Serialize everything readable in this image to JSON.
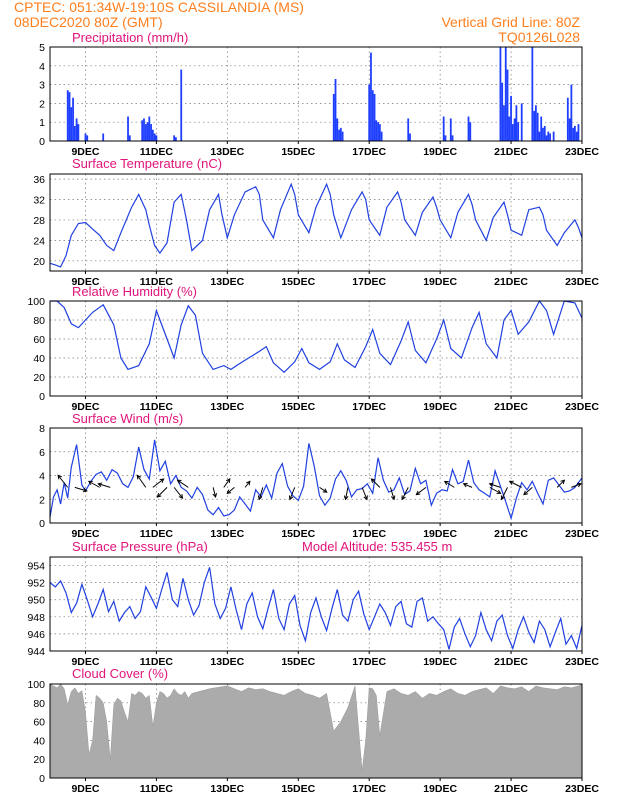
{
  "header": {
    "line1_left": "CPTEC:   051:34W-19:10S   CASSILANDIA (MS)",
    "line2_left": "08DEC2020 80Z (GMT)",
    "line1_right": "Vertical Grid Line: 80Z",
    "line2_right": "TQ0126L028"
  },
  "colors": {
    "header": "#ff7f1e",
    "title": "#e0147a",
    "line": "#2040e0",
    "bars": "#1f3fff",
    "cloud": "#ababab",
    "arrow": "#000000"
  },
  "x_axis": {
    "tick_labels": [
      "9DEC",
      "11DEC",
      "13DEC",
      "15DEC",
      "17DEC",
      "19DEC",
      "21DEC",
      "23DEC"
    ],
    "tick_days": [
      9,
      11,
      13,
      15,
      17,
      19,
      21,
      23
    ],
    "start_day": 8.0,
    "end_day": 23.0
  },
  "chart_data": [
    {
      "type": "bar",
      "title": "Precipitation (mm/h)",
      "ylim": [
        0,
        5
      ],
      "yticks": [
        "0",
        "1",
        "2",
        "3",
        "4",
        "5"
      ],
      "x": [
        8.5,
        8.55,
        8.6,
        8.65,
        8.7,
        8.75,
        8.8,
        9.0,
        9.05,
        9.5,
        10.2,
        10.25,
        10.6,
        10.65,
        10.7,
        10.75,
        10.8,
        10.85,
        10.9,
        10.95,
        11.0,
        11.5,
        11.55,
        11.7,
        16.0,
        16.05,
        16.1,
        16.15,
        16.2,
        16.25,
        17.0,
        17.05,
        17.1,
        17.15,
        17.2,
        17.25,
        17.3,
        17.35,
        18.1,
        18.15,
        19.1,
        19.15,
        19.3,
        19.35,
        19.8,
        19.85,
        20.7,
        20.75,
        20.8,
        20.85,
        20.9,
        20.95,
        21.0,
        21.05,
        21.1,
        21.15,
        21.2,
        21.3,
        21.6,
        21.65,
        21.7,
        21.75,
        21.8,
        21.85,
        21.9,
        21.95,
        22.0,
        22.05,
        22.1,
        22.2,
        22.6,
        22.65,
        22.7,
        22.75,
        22.8,
        22.85,
        22.9
      ],
      "values": [
        2.7,
        2.6,
        1.8,
        2.3,
        0.8,
        1.2,
        0.9,
        0.4,
        0.3,
        0.4,
        1.3,
        0.3,
        1.1,
        1.2,
        0.9,
        1.0,
        1.3,
        0.9,
        0.6,
        0.4,
        0.3,
        0.3,
        0.2,
        3.8,
        2.5,
        3.3,
        1.2,
        0.6,
        0.7,
        0.5,
        3.0,
        4.7,
        2.7,
        2.5,
        1.1,
        1.0,
        0.9,
        0.5,
        1.2,
        0.4,
        1.3,
        0.3,
        1.2,
        0.3,
        1.3,
        1.0,
        5.0,
        3.1,
        1.9,
        5.0,
        3.8,
        1.3,
        2.4,
        0.9,
        1.2,
        1.9,
        1.0,
        2.0,
        5.0,
        1.6,
        1.9,
        1.5,
        0.5,
        1.3,
        0.7,
        0.8,
        0.3,
        0.5,
        0.4,
        0.5,
        2.3,
        1.2,
        3.0,
        0.7,
        0.8,
        0.5,
        0.9
      ]
    },
    {
      "type": "line",
      "title": "Surface Temperature (nC)",
      "ylim": [
        18,
        37
      ],
      "yticks": [
        "20",
        "24",
        "28",
        "32",
        "36"
      ],
      "x": [
        8.0,
        8.15,
        8.3,
        8.45,
        8.6,
        8.8,
        9.0,
        9.2,
        9.4,
        9.6,
        9.8,
        10.0,
        10.3,
        10.5,
        10.7,
        10.8,
        10.95,
        11.1,
        11.3,
        11.5,
        11.7,
        11.85,
        12.0,
        12.3,
        12.5,
        12.75,
        12.85,
        13.0,
        13.2,
        13.5,
        13.8,
        13.9,
        14.0,
        14.3,
        14.5,
        14.8,
        14.9,
        15.0,
        15.3,
        15.5,
        15.8,
        15.9,
        16.0,
        16.2,
        16.5,
        16.8,
        16.9,
        17.0,
        17.3,
        17.5,
        17.8,
        17.9,
        18.0,
        18.3,
        18.5,
        18.8,
        18.9,
        19.0,
        19.3,
        19.5,
        19.8,
        19.9,
        20.0,
        20.3,
        20.5,
        20.8,
        20.9,
        21.0,
        21.3,
        21.5,
        21.8,
        21.9,
        22.0,
        22.3,
        22.5,
        22.8,
        22.9,
        23.0
      ],
      "values": [
        19.5,
        19.2,
        18.8,
        21.0,
        25.0,
        27.3,
        27.5,
        26.2,
        25.0,
        23.0,
        22.0,
        25.5,
        30.5,
        33.0,
        30.0,
        27.0,
        23.0,
        21.5,
        23.5,
        31.5,
        33.0,
        28.0,
        22.0,
        24.0,
        30.0,
        33.0,
        29.0,
        24.5,
        29.0,
        33.5,
        34.5,
        33.0,
        28.0,
        24.5,
        30.0,
        35.0,
        33.0,
        29.0,
        25.5,
        30.5,
        35.0,
        33.0,
        29.0,
        24.5,
        30.0,
        33.5,
        32.0,
        28.0,
        25.0,
        30.5,
        33.5,
        31.5,
        28.0,
        25.0,
        29.5,
        32.5,
        30.5,
        28.0,
        24.5,
        29.5,
        33.0,
        31.0,
        28.0,
        24.0,
        28.5,
        31.5,
        29.0,
        26.0,
        25.0,
        30.0,
        30.5,
        29.0,
        26.0,
        23.0,
        25.5,
        28.0,
        26.5,
        24.5
      ]
    },
    {
      "type": "line",
      "title": "Relative Humidity (%)",
      "ylim": [
        0,
        100
      ],
      "yticks": [
        "0",
        "20",
        "40",
        "60",
        "80",
        "100"
      ],
      "x": [
        8.0,
        8.2,
        8.4,
        8.6,
        8.8,
        9.0,
        9.2,
        9.5,
        9.8,
        10.0,
        10.2,
        10.5,
        10.8,
        11.0,
        11.2,
        11.4,
        11.5,
        11.7,
        11.9,
        12.1,
        12.3,
        12.6,
        12.9,
        13.1,
        13.3,
        13.6,
        13.9,
        14.1,
        14.3,
        14.6,
        14.9,
        15.1,
        15.3,
        15.6,
        15.9,
        16.1,
        16.3,
        16.6,
        16.9,
        17.1,
        17.3,
        17.6,
        17.9,
        18.1,
        18.3,
        18.6,
        18.9,
        19.1,
        19.3,
        19.6,
        19.9,
        20.1,
        20.3,
        20.6,
        20.8,
        21.0,
        21.2,
        21.5,
        21.8,
        22.0,
        22.2,
        22.5,
        22.8,
        23.0
      ],
      "values": [
        100,
        100,
        93,
        76,
        72,
        80,
        88,
        96,
        75,
        40,
        28,
        32,
        55,
        90,
        70,
        50,
        40,
        75,
        95,
        85,
        45,
        28,
        32,
        28,
        33,
        40,
        47,
        52,
        35,
        25,
        36,
        50,
        35,
        28,
        36,
        55,
        38,
        30,
        52,
        70,
        45,
        33,
        58,
        78,
        48,
        35,
        60,
        80,
        50,
        40,
        72,
        88,
        55,
        40,
        80,
        90,
        65,
        78,
        100,
        90,
        65,
        100,
        98,
        82
      ],
      "grid": true
    },
    {
      "type": "line",
      "title": "Surface Wind (m/s)",
      "ylim": [
        0,
        8
      ],
      "yticks": [
        "0",
        "2",
        "4",
        "6",
        "8"
      ],
      "x": [
        8.0,
        8.1,
        8.2,
        8.3,
        8.4,
        8.5,
        8.6,
        8.75,
        8.9,
        9.0,
        9.15,
        9.3,
        9.45,
        9.6,
        9.75,
        9.9,
        10.05,
        10.2,
        10.35,
        10.5,
        10.65,
        10.8,
        10.95,
        11.1,
        11.25,
        11.4,
        11.55,
        11.7,
        11.85,
        12.0,
        12.15,
        12.3,
        12.45,
        12.6,
        12.75,
        12.9,
        13.05,
        13.2,
        13.35,
        13.5,
        13.65,
        13.8,
        13.95,
        14.1,
        14.25,
        14.4,
        14.55,
        14.7,
        14.85,
        15.0,
        15.15,
        15.3,
        15.45,
        15.6,
        15.75,
        15.9,
        16.05,
        16.2,
        16.35,
        16.5,
        16.65,
        16.8,
        16.95,
        17.1,
        17.25,
        17.4,
        17.55,
        17.7,
        17.85,
        18.0,
        18.15,
        18.3,
        18.45,
        18.6,
        18.75,
        18.9,
        19.05,
        19.2,
        19.35,
        19.5,
        19.65,
        19.8,
        19.95,
        20.1,
        20.25,
        20.4,
        20.55,
        20.7,
        20.85,
        21.0,
        21.15,
        21.3,
        21.45,
        21.6,
        21.75,
        21.9,
        22.05,
        22.2,
        22.35,
        22.5,
        22.65,
        22.8,
        23.0
      ],
      "values": [
        0.5,
        2.2,
        2.8,
        1.6,
        3.4,
        2.1,
        4.7,
        6.6,
        3.2,
        2.7,
        3.5,
        4.1,
        4.3,
        3.6,
        4.5,
        4.2,
        3.3,
        3.0,
        3.9,
        6.4,
        4.5,
        3.7,
        7.0,
        4.4,
        5.2,
        3.3,
        4.0,
        3.0,
        2.7,
        2.1,
        3.0,
        2.4,
        1.1,
        0.7,
        1.3,
        0.6,
        0.7,
        1.1,
        2.2,
        1.6,
        1.0,
        2.8,
        2.2,
        3.2,
        2.1,
        4.2,
        5.0,
        3.1,
        2.3,
        1.9,
        3.1,
        6.7,
        4.8,
        2.3,
        1.5,
        2.1,
        3.7,
        4.4,
        3.6,
        2.2,
        2.8,
        2.9,
        3.3,
        2.5,
        5.5,
        3.6,
        2.6,
        2.8,
        3.8,
        2.4,
        2.7,
        4.6,
        3.3,
        3.6,
        1.5,
        2.5,
        2.8,
        2.7,
        4.5,
        3.3,
        3.5,
        5.3,
        3.4,
        2.8,
        2.5,
        2.2,
        4.4,
        3.1,
        1.8,
        0.4,
        2.1,
        3.4,
        2.8,
        3.5,
        2.5,
        1.6,
        3.6,
        3.8,
        3.2,
        2.6,
        2.7,
        3.0,
        3.8
      ],
      "arrows": [
        {
          "day": 8.5,
          "dx": -0.8,
          "dy": -1.0
        },
        {
          "day": 8.7,
          "dx": 1.0,
          "dy": 0.3
        },
        {
          "day": 9.4,
          "dx": -0.9,
          "dy": -0.5
        },
        {
          "day": 9.7,
          "dx": -1.0,
          "dy": -0.3
        },
        {
          "day": 10.7,
          "dx": -0.7,
          "dy": -1.0
        },
        {
          "day": 10.9,
          "dx": 0.9,
          "dy": -0.7
        },
        {
          "day": 11.3,
          "dx": -0.8,
          "dy": 0.8
        },
        {
          "day": 11.5,
          "dx": 0.7,
          "dy": 0.9
        },
        {
          "day": 11.9,
          "dx": -0.9,
          "dy": -0.6
        },
        {
          "day": 12.6,
          "dx": 0.2,
          "dy": 0.8
        },
        {
          "day": 12.9,
          "dx": 0.5,
          "dy": -0.7
        },
        {
          "day": 13.2,
          "dx": -0.6,
          "dy": 0.5
        },
        {
          "day": 13.5,
          "dx": 0.4,
          "dy": -0.5
        },
        {
          "day": 14.0,
          "dx": -0.3,
          "dy": 1.0
        },
        {
          "day": 14.9,
          "dx": -0.4,
          "dy": 1.0
        },
        {
          "day": 15.6,
          "dx": 0.6,
          "dy": 0.4
        },
        {
          "day": 16.4,
          "dx": -0.2,
          "dy": 1.0
        },
        {
          "day": 16.8,
          "dx": 0.4,
          "dy": 1.0
        },
        {
          "day": 17.3,
          "dx": -0.7,
          "dy": -0.7
        },
        {
          "day": 17.6,
          "dx": 0.3,
          "dy": 1.0
        },
        {
          "day": 18.1,
          "dx": -0.5,
          "dy": 1.0
        },
        {
          "day": 18.6,
          "dx": -0.8,
          "dy": 0.6
        },
        {
          "day": 19.4,
          "dx": -0.8,
          "dy": -0.5
        },
        {
          "day": 19.9,
          "dx": -0.7,
          "dy": -0.3
        },
        {
          "day": 20.4,
          "dx": 0.9,
          "dy": 0.5
        },
        {
          "day": 20.7,
          "dx": -0.9,
          "dy": -0.3
        },
        {
          "day": 20.9,
          "dx": -0.5,
          "dy": 1.0
        },
        {
          "day": 21.3,
          "dx": -1.0,
          "dy": -0.5
        },
        {
          "day": 21.6,
          "dx": -0.7,
          "dy": 0.6
        },
        {
          "day": 22.3,
          "dx": 0.6,
          "dy": -0.6
        },
        {
          "day": 22.7,
          "dx": 0.8,
          "dy": -0.3
        }
      ]
    },
    {
      "type": "line",
      "title": "Surface Pressure (hPa)",
      "subtitle": "Model Altitude: 535.455 m",
      "ylim": [
        944,
        955
      ],
      "yticks": [
        "944",
        "946",
        "948",
        "950",
        "952",
        "954"
      ],
      "x": [
        8.0,
        8.15,
        8.3,
        8.45,
        8.6,
        8.75,
        8.9,
        9.05,
        9.2,
        9.35,
        9.5,
        9.65,
        9.8,
        9.95,
        10.1,
        10.25,
        10.4,
        10.55,
        10.7,
        10.85,
        11.0,
        11.15,
        11.3,
        11.45,
        11.6,
        11.75,
        11.9,
        12.05,
        12.2,
        12.35,
        12.5,
        12.65,
        12.8,
        12.95,
        13.1,
        13.25,
        13.4,
        13.55,
        13.7,
        13.85,
        14.0,
        14.15,
        14.3,
        14.45,
        14.6,
        14.75,
        14.9,
        15.05,
        15.2,
        15.35,
        15.5,
        15.65,
        15.8,
        15.95,
        16.1,
        16.25,
        16.4,
        16.55,
        16.7,
        16.85,
        17.0,
        17.15,
        17.3,
        17.45,
        17.6,
        17.75,
        17.9,
        18.05,
        18.2,
        18.35,
        18.5,
        18.65,
        18.8,
        18.95,
        19.1,
        19.25,
        19.4,
        19.55,
        19.7,
        19.85,
        20.0,
        20.15,
        20.3,
        20.45,
        20.6,
        20.75,
        20.9,
        21.05,
        21.2,
        21.35,
        21.5,
        21.65,
        21.8,
        21.95,
        22.1,
        22.25,
        22.4,
        22.55,
        22.7,
        22.85,
        23.0
      ],
      "values": [
        952.0,
        951.5,
        952.2,
        950.8,
        948.5,
        949.6,
        951.8,
        950.0,
        948.0,
        949.5,
        951.2,
        948.6,
        949.8,
        947.5,
        948.5,
        949.2,
        947.8,
        948.6,
        951.5,
        950.3,
        949.0,
        951.2,
        953.2,
        950.0,
        949.2,
        952.5,
        950.0,
        948.2,
        949.3,
        952.0,
        953.8,
        949.5,
        947.8,
        949.0,
        951.5,
        948.8,
        946.5,
        949.5,
        950.8,
        948.0,
        946.6,
        949.0,
        951.2,
        947.8,
        946.5,
        949.5,
        950.5,
        947.0,
        945.2,
        948.5,
        950.2,
        948.0,
        946.4,
        949.0,
        951.2,
        948.2,
        947.5,
        950.0,
        951.0,
        948.3,
        946.5,
        948.0,
        949.5,
        948.5,
        947.0,
        949.2,
        949.8,
        947.2,
        946.8,
        949.8,
        950.2,
        947.5,
        948.0,
        947.2,
        946.5,
        944.2,
        946.8,
        947.8,
        946.0,
        944.5,
        945.8,
        948.5,
        946.5,
        945.2,
        947.5,
        948.2,
        945.8,
        944.3,
        946.5,
        948.0,
        946.2,
        945.0,
        947.5,
        946.5,
        944.5,
        946.2,
        947.8,
        944.8,
        945.8,
        944.3,
        947.0
      ]
    },
    {
      "type": "area",
      "title": "Cloud Cover (%)",
      "ylim": [
        0,
        100
      ],
      "yticks": [
        "0",
        "20",
        "40",
        "60",
        "80",
        "100"
      ],
      "x": [
        8.0,
        8.1,
        8.2,
        8.3,
        8.4,
        8.5,
        8.6,
        8.7,
        8.8,
        8.9,
        9.0,
        9.1,
        9.2,
        9.3,
        9.4,
        9.5,
        9.6,
        9.7,
        9.8,
        9.9,
        10.0,
        10.1,
        10.2,
        10.3,
        10.4,
        10.5,
        10.6,
        10.7,
        10.8,
        10.9,
        11.0,
        11.1,
        11.2,
        11.3,
        11.4,
        11.5,
        11.6,
        11.7,
        11.8,
        11.9,
        12.0,
        12.5,
        13.0,
        13.2,
        13.4,
        13.6,
        13.8,
        14.0,
        14.2,
        14.4,
        14.6,
        14.8,
        15.0,
        15.2,
        15.4,
        15.6,
        15.8,
        16.0,
        16.2,
        16.4,
        16.6,
        16.8,
        16.9,
        17.0,
        17.1,
        17.2,
        17.3,
        17.5,
        17.7,
        17.9,
        18.1,
        18.3,
        18.5,
        18.7,
        18.9,
        19.1,
        19.3,
        19.5,
        19.7,
        19.9,
        20.1,
        20.3,
        20.5,
        20.7,
        20.9,
        21.1,
        21.3,
        21.5,
        21.7,
        21.9,
        22.1,
        22.3,
        22.5,
        22.7,
        22.9,
        23.0
      ],
      "values": [
        100,
        98,
        96,
        100,
        95,
        78,
        92,
        96,
        90,
        93,
        70,
        25,
        40,
        88,
        85,
        80,
        60,
        20,
        78,
        85,
        82,
        70,
        60,
        90,
        88,
        92,
        90,
        85,
        88,
        55,
        80,
        92,
        90,
        85,
        88,
        95,
        90,
        88,
        92,
        85,
        90,
        95,
        98,
        95,
        92,
        96,
        94,
        95,
        92,
        90,
        88,
        92,
        95,
        90,
        88,
        85,
        90,
        50,
        60,
        75,
        98,
        8,
        40,
        96,
        95,
        88,
        45,
        92,
        95,
        90,
        88,
        92,
        85,
        90,
        88,
        92,
        95,
        90,
        88,
        92,
        94,
        96,
        90,
        98,
        96,
        95,
        97,
        92,
        98,
        96,
        95,
        94,
        97,
        96,
        98,
        100
      ]
    }
  ]
}
